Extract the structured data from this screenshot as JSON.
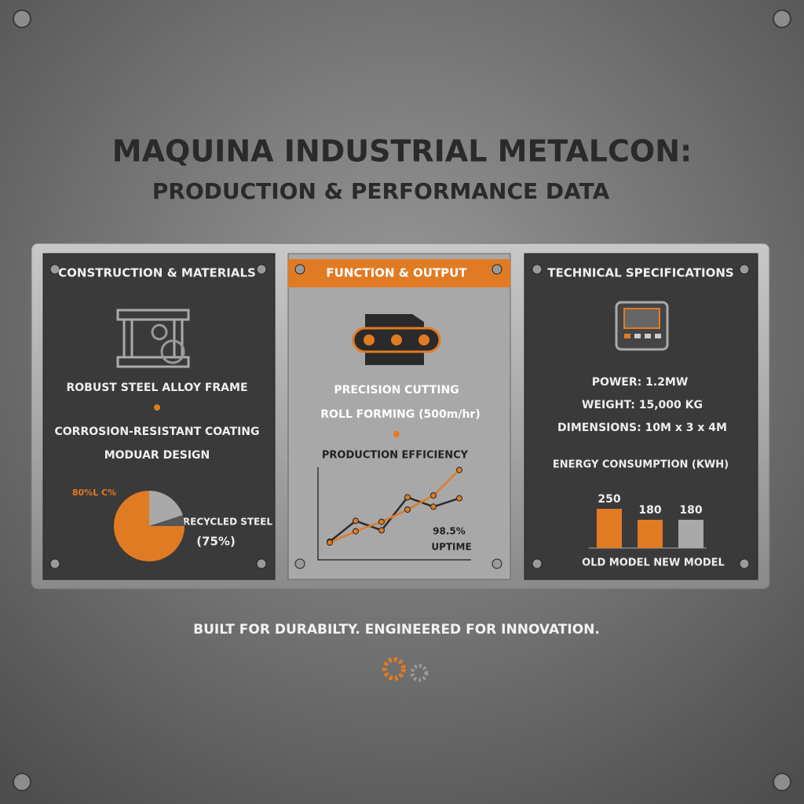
{
  "title": {
    "line1": "MAQUINA INDUSTRIAL METALCON:",
    "line2": "PRODUCTION & PERFORMANCE DATA"
  },
  "panels": [
    {
      "header": "CONSTRUCTION & MATERIALS",
      "items": [
        "ROBUST STEEL ALLOY FRAME",
        "CORROSION-RESISTANT COATING",
        "MODUAR DESIGN"
      ],
      "chart": {
        "type": "pie",
        "label": "80%L C%",
        "caption": [
          "RECYCLED STEEL",
          "(75%)"
        ],
        "values": [
          20,
          5,
          75
        ],
        "colors": [
          "#a9a9a9",
          "#555555",
          "#e07b24"
        ]
      }
    },
    {
      "header": "FUNCTION & OUTPUT",
      "items": [
        "PRECISION CUTTING",
        "ROLL FORMING (500m/hr)"
      ],
      "chart": {
        "type": "line",
        "title": "PRODUCTION EFFICIENCY",
        "annotation": [
          "98.5%",
          "UPTIME"
        ],
        "series": [
          {
            "color": "#2b2b2b",
            "values": [
              2.1,
              4.3,
              3.3,
              6.8,
              5.8,
              6.7
            ]
          },
          {
            "color": "#e07b24",
            "values": [
              2,
              3.2,
              4.2,
              5.5,
              7,
              9.7
            ]
          }
        ]
      }
    },
    {
      "header": "TECHNICAL SPECIFICATIONS",
      "items": [
        "POWER: 1.2MW",
        "WEIGHT: 15,000 KG",
        "DIMENSIONS: 10M x 3 x 4M"
      ],
      "chart": {
        "type": "bar",
        "title": "ENERGY CONSUMPTION (KWH)",
        "caption": "OLD MODEL NEW MODEL",
        "values": [
          250,
          180,
          180
        ],
        "colors": [
          "#e07b24",
          "#e07b24",
          "#a9a9a9"
        ]
      }
    }
  ],
  "footer": "BUILT FOR DURABILTY. ENGINEERED FOR INNOVATION."
}
